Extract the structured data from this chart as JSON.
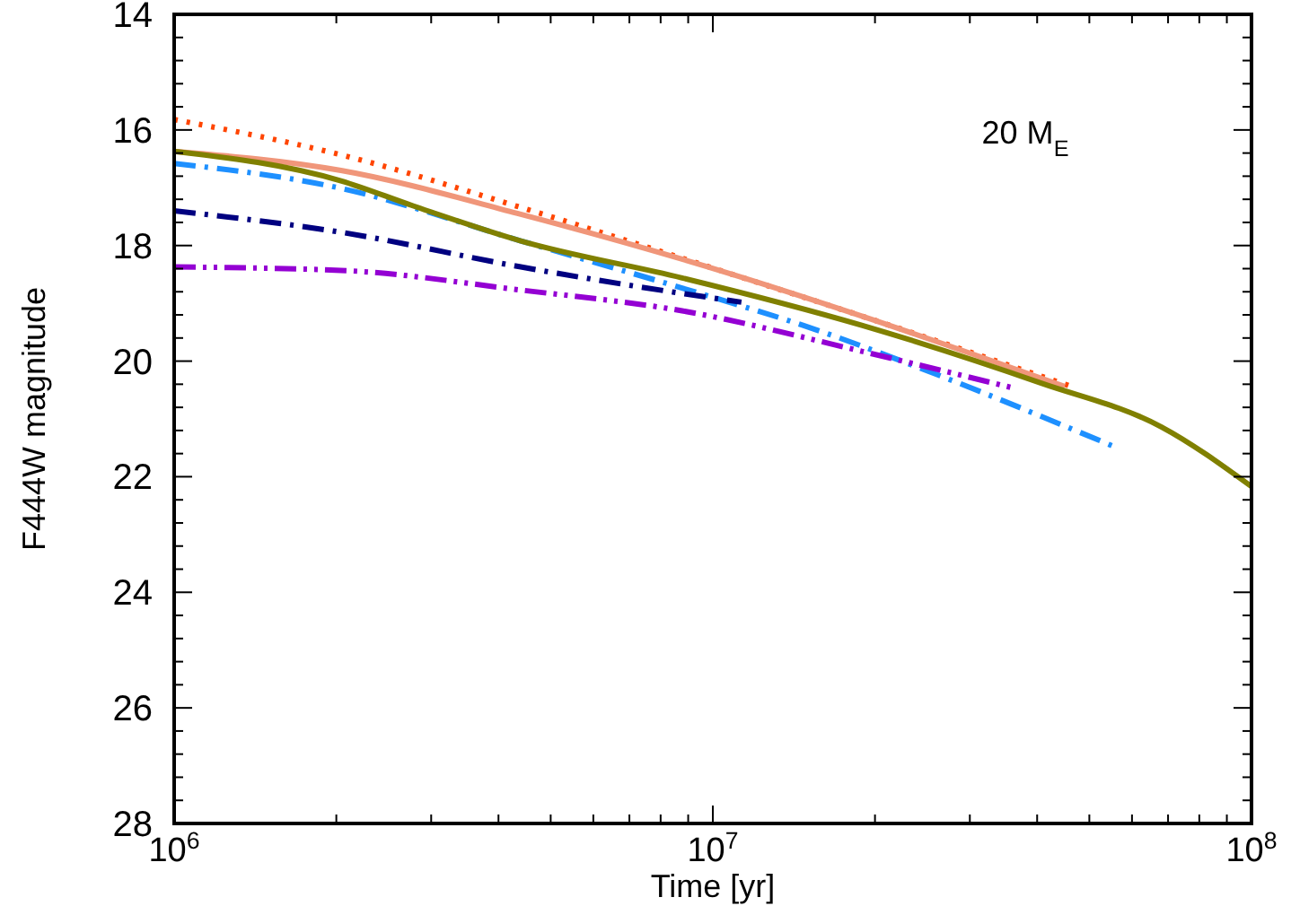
{
  "chart_data": {
    "type": "line",
    "xlabel": "Time [yr]",
    "ylabel": "F444W magnitude",
    "log": "x",
    "xlim": [
      1000000,
      100000000
    ],
    "ylim": [
      28,
      14
    ],
    "xticks": [
      {
        "value": 1000000,
        "label": "10$^{6}$"
      },
      {
        "value": 10000000,
        "label": "10$^{7}$"
      },
      {
        "value": 100000000,
        "label": "10$^{8}$"
      }
    ],
    "yticks": [
      14,
      16,
      18,
      20,
      22,
      24,
      26,
      28
    ],
    "grid": false,
    "annotations": [
      "20 M$_{E}$"
    ],
    "series": [
      {
        "color": "#ff4500",
        "line_style": "dotted",
        "x": [
          1000000,
          2040000,
          4400000,
          10800000,
          18900000,
          46400000
        ],
        "values": [
          15.82,
          16.43,
          17.34,
          18.49,
          19.22,
          20.44
        ]
      },
      {
        "color": "#f0967a",
        "line_style": "solid",
        "x": [
          1000000,
          2040000,
          4400000,
          10800000,
          18900000,
          45000000
        ],
        "values": [
          16.37,
          16.7,
          17.46,
          18.49,
          19.22,
          20.44
        ]
      },
      {
        "color": "#1e90ff",
        "line_style": "dashdot",
        "x": [
          1000000,
          2040000,
          4400000,
          10200000,
          14700000,
          24400000,
          55300000
        ],
        "values": [
          16.58,
          17.01,
          17.92,
          18.92,
          19.38,
          20.13,
          21.47
        ]
      },
      {
        "color": "#000080",
        "line_style": "dashdot",
        "x": [
          1000000,
          2040000,
          4400000,
          10200000,
          11300000
        ],
        "values": [
          17.4,
          17.77,
          18.37,
          18.92,
          18.98
        ]
      },
      {
        "color": "#9400d3",
        "line_style": "dashdotdot",
        "x": [
          1000000,
          2040000,
          4400000,
          8770000,
          18900000,
          36300000
        ],
        "values": [
          18.37,
          18.43,
          18.77,
          19.13,
          19.83,
          20.47
        ]
      },
      {
        "color": "#808000",
        "line_style": "solid",
        "x": [
          1000000,
          2040000,
          2770000,
          4400000,
          8770000,
          18900000,
          40700000,
          68100000,
          100000000
        ],
        "values": [
          16.37,
          16.88,
          17.31,
          17.92,
          18.56,
          19.38,
          20.38,
          21.14,
          22.17
        ]
      }
    ]
  }
}
